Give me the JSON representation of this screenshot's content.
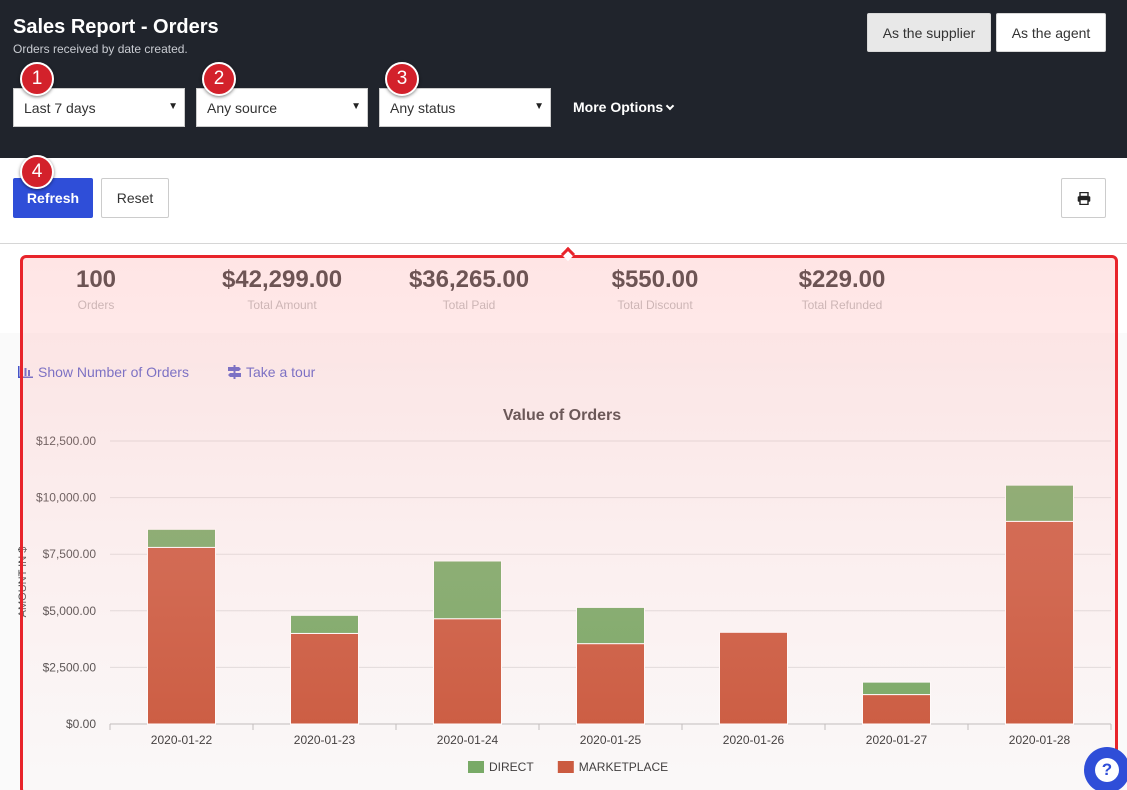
{
  "header": {
    "title": "Sales Report - Orders",
    "subtitle": "Orders received by date created.",
    "role_supplier": "As the supplier",
    "role_agent": "As the agent"
  },
  "filters": {
    "date_range": "Last 7 days",
    "source": "Any source",
    "status": "Any status",
    "more_options": "More Options"
  },
  "badges": [
    "1",
    "2",
    "3",
    "4"
  ],
  "actions": {
    "refresh": "Refresh",
    "reset": "Reset"
  },
  "stats": [
    {
      "value": "100",
      "label": "Orders"
    },
    {
      "value": "$42,299.00",
      "label": "Total Amount"
    },
    {
      "value": "$36,265.00",
      "label": "Total Paid"
    },
    {
      "value": "$550.00",
      "label": "Total Discount"
    },
    {
      "value": "$229.00",
      "label": "Total Refunded"
    }
  ],
  "links": {
    "show_orders": "Show Number of Orders",
    "tour": "Take a tour"
  },
  "icons": {
    "caret": "caret-down-icon",
    "print": "print-icon",
    "bar_chart": "bar-chart-icon",
    "signpost": "signpost-icon",
    "help": "help-icon"
  },
  "help_label": "?",
  "colors": {
    "header_bg": "#20242c",
    "primary": "#2f4ed8",
    "badge": "#d3212b",
    "highlight": "#e8242b",
    "direct": "#6fa75f",
    "marketplace": "#c75235"
  },
  "chart_data": {
    "type": "bar",
    "stacked": true,
    "title": "Value of Orders",
    "ylabel": "AMOUNT IN $",
    "xlabel": "",
    "categories": [
      "2020-01-22",
      "2020-01-23",
      "2020-01-24",
      "2020-01-25",
      "2020-01-26",
      "2020-01-27",
      "2020-01-28"
    ],
    "series": [
      {
        "name": "MARKETPLACE",
        "color": "#c75235",
        "values": [
          7800,
          4000,
          4650,
          3550,
          4050,
          1300,
          8950
        ]
      },
      {
        "name": "DIRECT",
        "color": "#6fa75f",
        "values": [
          800,
          800,
          2550,
          1600,
          0,
          550,
          1600
        ]
      }
    ],
    "ylim": [
      0,
      12500
    ],
    "yticks": [
      "$0.00",
      "$2,500.00",
      "$5,000.00",
      "$7,500.00",
      "$10,000.00",
      "$12,500.00"
    ],
    "legend": [
      "DIRECT",
      "MARKETPLACE"
    ],
    "legend_position": "bottom",
    "grid": true
  }
}
